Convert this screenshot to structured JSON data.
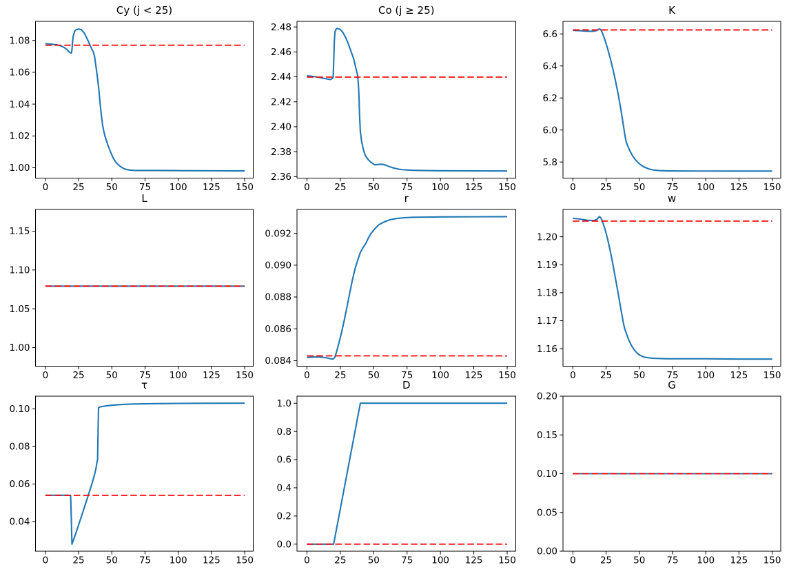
{
  "figure": {
    "background": "#ffffff",
    "line_color": "#1f77b4",
    "ref_line_color": "#ff0000",
    "axis_color": "#000000",
    "text_color": "#000000"
  },
  "chart_data": [
    {
      "type": "line",
      "key": "cy",
      "title": "Cy (j < 25)",
      "xlabel": "",
      "ylabel": "",
      "grid": false,
      "legend": null,
      "xlim": [
        -7.45,
        156.45
      ],
      "ylim": [
        0.9935,
        1.092
      ],
      "xticks": [
        0,
        25,
        50,
        75,
        100,
        125,
        150
      ],
      "xtick_labels": [
        "0",
        "25",
        "50",
        "75",
        "100",
        "125",
        "150"
      ],
      "yticks": [
        1.0,
        1.02,
        1.04,
        1.06,
        1.08
      ],
      "ytick_labels": [
        "1.00",
        "1.02",
        "1.04",
        "1.06",
        "1.08"
      ],
      "series": [
        {
          "name": "transition-path",
          "style": "solid",
          "color": "#1f77b4",
          "x": [
            0,
            4,
            8,
            11,
            14,
            16,
            17,
            18,
            19,
            19.6,
            20,
            20.5,
            21,
            22,
            23,
            25,
            27,
            29,
            31,
            33,
            35,
            36,
            37,
            38,
            39,
            40,
            41,
            42,
            43,
            44,
            45,
            47,
            49,
            51,
            53,
            55,
            57,
            59,
            61,
            64,
            68,
            75,
            85,
            100,
            125,
            150
          ],
          "y": [
            1.078,
            1.0777,
            1.0773,
            1.0768,
            1.0757,
            1.0744,
            1.0736,
            1.0727,
            1.0722,
            1.0721,
            1.074,
            1.0795,
            1.0828,
            1.0857,
            1.0867,
            1.0872,
            1.0868,
            1.085,
            1.0818,
            1.0782,
            1.0745,
            1.073,
            1.07,
            1.064,
            1.058,
            1.051,
            1.042,
            1.034,
            1.0272,
            1.0228,
            1.0195,
            1.0143,
            1.01,
            1.0062,
            1.0035,
            1.0018,
            1.0005,
            0.9995,
            0.9989,
            0.9985,
            0.9983,
            0.9983,
            0.9983,
            0.9982,
            0.9981,
            0.998
          ]
        },
        {
          "name": "steady-state-reference",
          "style": "dashed",
          "color": "#ff0000",
          "x": [
            0,
            150
          ],
          "y": [
            1.077,
            1.077
          ]
        }
      ]
    },
    {
      "type": "line",
      "key": "co",
      "title": "Co (j ≥ 25)",
      "xlabel": "",
      "ylabel": "",
      "grid": false,
      "legend": null,
      "xlim": [
        -7.45,
        156.45
      ],
      "ylim": [
        2.3588,
        2.4845
      ],
      "xticks": [
        0,
        25,
        50,
        75,
        100,
        125,
        150
      ],
      "xtick_labels": [
        "0",
        "25",
        "50",
        "75",
        "100",
        "125",
        "150"
      ],
      "yticks": [
        2.36,
        2.38,
        2.4,
        2.42,
        2.44,
        2.46,
        2.48
      ],
      "ytick_labels": [
        "2.36",
        "2.38",
        "2.40",
        "2.42",
        "2.44",
        "2.46",
        "2.48"
      ],
      "series": [
        {
          "name": "transition-path",
          "style": "solid",
          "color": "#1f77b4",
          "x": [
            0,
            4,
            8,
            12,
            15,
            17,
            18,
            19,
            19.6,
            20,
            20.5,
            21,
            22,
            23,
            25,
            27,
            29,
            31,
            33,
            35,
            37,
            38,
            38.6,
            39,
            39.4,
            40,
            41,
            42,
            43,
            44,
            46,
            48,
            50,
            51,
            53,
            55,
            57,
            59,
            61,
            64,
            68,
            72,
            78,
            85,
            100,
            125,
            150
          ],
          "y": [
            2.4408,
            2.4404,
            2.4398,
            2.439,
            2.4383,
            2.4379,
            2.438,
            2.4387,
            2.4395,
            2.45,
            2.468,
            2.476,
            2.4785,
            2.4788,
            2.478,
            2.4755,
            2.4715,
            2.4665,
            2.4605,
            2.4545,
            2.4455,
            2.441,
            2.433,
            2.424,
            2.41,
            2.396,
            2.388,
            2.383,
            2.379,
            2.3765,
            2.3735,
            2.3715,
            2.37,
            2.3694,
            2.3697,
            2.3699,
            2.3698,
            2.3692,
            2.3683,
            2.3672,
            2.3661,
            2.3655,
            2.3651,
            2.3649,
            2.3647,
            2.3646,
            2.3645
          ]
        },
        {
          "name": "steady-state-reference",
          "style": "dashed",
          "color": "#ff0000",
          "x": [
            0,
            150
          ],
          "y": [
            2.4398,
            2.4398
          ]
        }
      ]
    },
    {
      "type": "line",
      "key": "k",
      "title": "K",
      "xlabel": "",
      "ylabel": "",
      "grid": false,
      "legend": null,
      "xlim": [
        -7.45,
        156.45
      ],
      "ylim": [
        5.6995,
        6.6785
      ],
      "xticks": [
        0,
        25,
        50,
        75,
        100,
        125,
        150
      ],
      "xtick_labels": [
        "0",
        "25",
        "50",
        "75",
        "100",
        "125",
        "150"
      ],
      "yticks": [
        5.8,
        6.0,
        6.2,
        6.4,
        6.6
      ],
      "ytick_labels": [
        "5.8",
        "6.0",
        "6.2",
        "6.4",
        "6.6"
      ],
      "series": [
        {
          "name": "transition-path",
          "style": "solid",
          "color": "#1f77b4",
          "x": [
            0,
            4,
            8,
            11,
            14,
            16,
            18,
            19,
            20,
            21,
            22,
            24,
            26,
            28,
            30,
            32,
            34,
            36,
            38,
            39,
            40,
            41,
            43,
            45,
            47,
            50,
            53,
            57,
            61,
            66,
            72,
            80,
            100,
            125,
            150
          ],
          "y": [
            6.622,
            6.6205,
            6.6185,
            6.617,
            6.6165,
            6.6175,
            6.6215,
            6.627,
            6.632,
            6.626,
            6.61,
            6.566,
            6.512,
            6.452,
            6.385,
            6.31,
            6.228,
            6.135,
            6.03,
            5.975,
            5.93,
            5.906,
            5.868,
            5.838,
            5.8145,
            5.789,
            5.7715,
            5.757,
            5.7495,
            5.746,
            5.7445,
            5.7438,
            5.7436,
            5.7435,
            5.7435
          ]
        },
        {
          "name": "steady-state-reference",
          "style": "dashed",
          "color": "#ff0000",
          "x": [
            0,
            150
          ],
          "y": [
            6.625,
            6.625
          ]
        }
      ]
    },
    {
      "type": "line",
      "key": "l",
      "title": "L",
      "xlabel": "",
      "ylabel": "",
      "grid": false,
      "legend": null,
      "xlim": [
        -7.45,
        156.45
      ],
      "ylim": [
        0.976,
        1.178
      ],
      "xticks": [
        0,
        25,
        50,
        75,
        100,
        125,
        150
      ],
      "xtick_labels": [
        "0",
        "25",
        "50",
        "75",
        "100",
        "125",
        "150"
      ],
      "yticks": [
        1.0,
        1.05,
        1.1,
        1.15
      ],
      "ytick_labels": [
        "1.00",
        "1.05",
        "1.10",
        "1.15"
      ],
      "series": [
        {
          "name": "transition-path",
          "style": "solid",
          "color": "#1f77b4",
          "x": [
            0,
            150
          ],
          "y": [
            1.0792,
            1.0792
          ]
        },
        {
          "name": "steady-state-reference",
          "style": "dashed",
          "color": "#ff0000",
          "x": [
            0,
            150
          ],
          "y": [
            1.0792,
            1.0792
          ]
        }
      ]
    },
    {
      "type": "line",
      "key": "r",
      "title": "r",
      "xlabel": "",
      "ylabel": "",
      "grid": false,
      "legend": null,
      "xlim": [
        -7.45,
        156.45
      ],
      "ylim": [
        0.08365,
        0.0935
      ],
      "xticks": [
        0,
        25,
        50,
        75,
        100,
        125,
        150
      ],
      "xtick_labels": [
        "0",
        "25",
        "50",
        "75",
        "100",
        "125",
        "150"
      ],
      "yticks": [
        0.084,
        0.086,
        0.088,
        0.09,
        0.092
      ],
      "ytick_labels": [
        "0.084",
        "0.086",
        "0.088",
        "0.090",
        "0.092"
      ],
      "series": [
        {
          "name": "transition-path",
          "style": "solid",
          "color": "#1f77b4",
          "x": [
            0,
            4,
            8,
            12,
            15,
            17,
            19,
            20,
            21,
            22,
            24,
            26,
            28,
            30,
            32,
            34,
            36,
            38,
            40,
            42,
            44,
            46,
            48,
            51,
            54,
            58,
            62,
            67,
            73,
            80,
            100,
            125,
            150
          ],
          "y": [
            0.0842,
            0.08422,
            0.08423,
            0.08421,
            0.08417,
            0.08413,
            0.0841,
            0.08412,
            0.08424,
            0.0845,
            0.08512,
            0.0858,
            0.08655,
            0.08738,
            0.08822,
            0.08905,
            0.08975,
            0.0903,
            0.0908,
            0.0911,
            0.09135,
            0.0917,
            0.092,
            0.0923,
            0.09255,
            0.09272,
            0.09285,
            0.09293,
            0.09298,
            0.09301,
            0.09303,
            0.09304,
            0.09305
          ]
        },
        {
          "name": "steady-state-reference",
          "style": "dashed",
          "color": "#ff0000",
          "x": [
            0,
            150
          ],
          "y": [
            0.0843,
            0.0843
          ]
        }
      ]
    },
    {
      "type": "line",
      "key": "w",
      "title": "w",
      "xlabel": "",
      "ylabel": "",
      "grid": false,
      "legend": null,
      "xlim": [
        -7.45,
        156.45
      ],
      "ylim": [
        1.15375,
        1.20975
      ],
      "xticks": [
        0,
        25,
        50,
        75,
        100,
        125,
        150
      ],
      "xtick_labels": [
        "0",
        "25",
        "50",
        "75",
        "100",
        "125",
        "150"
      ],
      "yticks": [
        1.16,
        1.17,
        1.18,
        1.19,
        1.2
      ],
      "ytick_labels": [
        "1.16",
        "1.17",
        "1.18",
        "1.19",
        "1.20"
      ],
      "series": [
        {
          "name": "transition-path",
          "style": "solid",
          "color": "#1f77b4",
          "x": [
            0,
            4,
            8,
            11,
            14,
            16,
            18,
            19,
            20,
            21,
            22,
            24,
            26,
            28,
            30,
            32,
            34,
            36,
            38,
            39,
            40,
            42,
            44,
            46,
            48,
            50,
            53,
            56,
            60,
            65,
            70,
            80,
            100,
            125,
            150
          ],
          "y": [
            1.2066,
            1.2064,
            1.2061,
            1.2059,
            1.2058,
            1.2058,
            1.2062,
            1.2067,
            1.2072,
            1.2068,
            1.2058,
            1.203,
            1.1995,
            1.1952,
            1.1905,
            1.1852,
            1.18,
            1.1745,
            1.1692,
            1.1672,
            1.1658,
            1.1632,
            1.1612,
            1.1597,
            1.1586,
            1.1578,
            1.1571,
            1.1568,
            1.1566,
            1.1565,
            1.1564,
            1.1564,
            1.1564,
            1.1563,
            1.1563
          ]
        },
        {
          "name": "steady-state-reference",
          "style": "dashed",
          "color": "#ff0000",
          "x": [
            0,
            150
          ],
          "y": [
            1.2056,
            1.2056
          ]
        }
      ]
    },
    {
      "type": "line",
      "key": "tau",
      "title": "τ",
      "xlabel": "",
      "ylabel": "",
      "grid": false,
      "legend": null,
      "xlim": [
        -7.45,
        156.45
      ],
      "ylim": [
        0.02425,
        0.10675
      ],
      "xticks": [
        0,
        25,
        50,
        75,
        100,
        125,
        150
      ],
      "xtick_labels": [
        "0",
        "25",
        "50",
        "75",
        "100",
        "125",
        "150"
      ],
      "yticks": [
        0.04,
        0.06,
        0.08,
        0.1
      ],
      "ytick_labels": [
        "0.04",
        "0.06",
        "0.08",
        "0.10"
      ],
      "series": [
        {
          "name": "transition-path",
          "style": "solid",
          "color": "#1f77b4",
          "x": [
            0,
            5,
            10,
            15,
            18,
            19,
            19.5,
            20,
            21,
            23,
            25,
            27,
            29,
            31,
            33,
            35,
            37,
            38,
            39,
            39.3,
            39.7,
            40,
            41,
            43,
            46,
            50,
            55,
            60,
            67,
            75,
            85,
            100,
            120,
            150
          ],
          "y": [
            0.054,
            0.054,
            0.054,
            0.054,
            0.054,
            0.0539,
            0.042,
            0.028,
            0.03,
            0.034,
            0.0382,
            0.0425,
            0.0468,
            0.0512,
            0.0556,
            0.06,
            0.065,
            0.068,
            0.0722,
            0.073,
            0.09,
            0.1005,
            0.101,
            0.1013,
            0.1016,
            0.1019,
            0.1022,
            0.1024,
            0.1026,
            0.1027,
            0.1028,
            0.1029,
            0.10295,
            0.103
          ]
        },
        {
          "name": "steady-state-reference",
          "style": "dashed",
          "color": "#ff0000",
          "x": [
            0,
            150
          ],
          "y": [
            0.054,
            0.054
          ]
        }
      ]
    },
    {
      "type": "line",
      "key": "d",
      "title": "D",
      "xlabel": "",
      "ylabel": "",
      "grid": false,
      "legend": null,
      "xlim": [
        -7.45,
        156.45
      ],
      "ylim": [
        -0.05,
        1.05
      ],
      "xticks": [
        0,
        25,
        50,
        75,
        100,
        125,
        150
      ],
      "xtick_labels": [
        "0",
        "25",
        "50",
        "75",
        "100",
        "125",
        "150"
      ],
      "yticks": [
        0.0,
        0.2,
        0.4,
        0.6,
        0.8,
        1.0
      ],
      "ytick_labels": [
        "0.0",
        "0.2",
        "0.4",
        "0.6",
        "0.8",
        "1.0"
      ],
      "series": [
        {
          "name": "transition-path",
          "style": "solid",
          "color": "#1f77b4",
          "x": [
            0,
            20,
            40,
            150
          ],
          "y": [
            0.0,
            0.0,
            1.0,
            1.0
          ]
        },
        {
          "name": "steady-state-reference",
          "style": "dashed",
          "color": "#ff0000",
          "x": [
            0,
            150
          ],
          "y": [
            0.0,
            0.0
          ]
        }
      ]
    },
    {
      "type": "line",
      "key": "g",
      "title": "G",
      "xlabel": "",
      "ylabel": "",
      "grid": false,
      "legend": null,
      "xlim": [
        -7.45,
        156.45
      ],
      "ylim": [
        0.0,
        0.2
      ],
      "xticks": [
        0,
        25,
        50,
        75,
        100,
        125,
        150
      ],
      "xtick_labels": [
        "0",
        "25",
        "50",
        "75",
        "100",
        "125",
        "150"
      ],
      "yticks": [
        0.0,
        0.05,
        0.1,
        0.15,
        0.2
      ],
      "ytick_labels": [
        "0.00",
        "0.05",
        "0.10",
        "0.15",
        "0.20"
      ],
      "series": [
        {
          "name": "transition-path",
          "style": "solid",
          "color": "#1f77b4",
          "x": [
            0,
            150
          ],
          "y": [
            0.1,
            0.1
          ]
        },
        {
          "name": "steady-state-reference",
          "style": "dashed",
          "color": "#ff0000",
          "x": [
            0,
            150
          ],
          "y": [
            0.1,
            0.1
          ]
        }
      ]
    }
  ]
}
